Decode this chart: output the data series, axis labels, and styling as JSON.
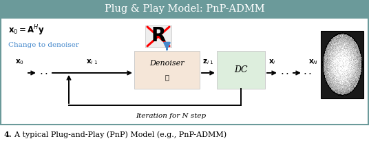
{
  "title": "Plug & Play Model: PnP-ADMM",
  "title_bg": "#6b9a9a",
  "title_fg": "white",
  "border_color": "#6b9a9a",
  "caption_bold": "4.",
  "caption_rest": "  A typical Plug-and-Play (PnP) Model (e.g., PnP-ADMM)",
  "denoiser_box_color": "#f5e6d8",
  "dc_box_color": "#ddeedd",
  "change_text": "Change to denoiser",
  "iter_text": "Iteration for N step",
  "blue_arrow": "#4488cc",
  "blue_text": "#4488cc"
}
